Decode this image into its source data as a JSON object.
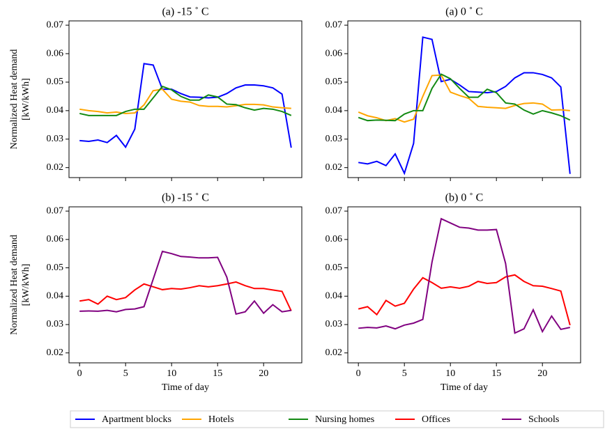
{
  "chart_data": [
    {
      "type": "line",
      "title": "(a)  -15 ˚ C",
      "ylabel": [
        "Normalized Heat demand",
        "[kW/kWh]"
      ],
      "x": [
        0,
        1,
        2,
        3,
        4,
        5,
        6,
        7,
        8,
        9,
        10,
        11,
        12,
        13,
        14,
        15,
        16,
        17,
        18,
        19,
        20,
        21,
        22,
        23
      ],
      "xlim": [
        -1.15,
        24.15
      ],
      "xticks": [
        0,
        5,
        10,
        15,
        20
      ],
      "ylim": [
        0.0165,
        0.0715
      ],
      "yticks": [
        0.02,
        0.03,
        0.04,
        0.05,
        0.06,
        0.07
      ],
      "series": [
        {
          "name": "Apartment blocks",
          "color": "#0000ff",
          "values": [
            0.0295,
            0.0292,
            0.0297,
            0.0288,
            0.0313,
            0.0272,
            0.0335,
            0.0565,
            0.056,
            0.0475,
            0.0475,
            0.046,
            0.0448,
            0.0447,
            0.0445,
            0.0447,
            0.046,
            0.048,
            0.049,
            0.049,
            0.0487,
            0.048,
            0.0458,
            0.027
          ]
        },
        {
          "name": "Hotels",
          "color": "#ffa500",
          "values": [
            0.0405,
            0.04,
            0.0397,
            0.0392,
            0.0395,
            0.039,
            0.0392,
            0.042,
            0.047,
            0.0475,
            0.044,
            0.0433,
            0.043,
            0.0418,
            0.0415,
            0.0415,
            0.0413,
            0.0417,
            0.0422,
            0.0422,
            0.042,
            0.0413,
            0.041,
            0.0408
          ]
        },
        {
          "name": "Nursing homes",
          "color": "#138a13",
          "values": [
            0.039,
            0.0383,
            0.0383,
            0.0383,
            0.0383,
            0.0397,
            0.0405,
            0.0405,
            0.0445,
            0.0485,
            0.0473,
            0.045,
            0.0437,
            0.0437,
            0.0455,
            0.0448,
            0.0423,
            0.0421,
            0.041,
            0.0402,
            0.0408,
            0.0405,
            0.0397,
            0.0383
          ]
        }
      ]
    },
    {
      "type": "line",
      "title": "(a)  0 ˚ C",
      "x": [
        0,
        1,
        2,
        3,
        4,
        5,
        6,
        7,
        8,
        9,
        10,
        11,
        12,
        13,
        14,
        15,
        16,
        17,
        18,
        19,
        20,
        21,
        22,
        23
      ],
      "xlim": [
        -1.15,
        24.15
      ],
      "xticks": [
        0,
        5,
        10,
        15,
        20
      ],
      "ylim": [
        0.0165,
        0.0715
      ],
      "yticks": [
        0.02,
        0.03,
        0.04,
        0.05,
        0.06,
        0.07
      ],
      "series": [
        {
          "name": "Apartment blocks",
          "color": "#0000ff",
          "values": [
            0.0218,
            0.0213,
            0.0222,
            0.0207,
            0.0248,
            0.018,
            0.0285,
            0.0658,
            0.065,
            0.0502,
            0.051,
            0.049,
            0.0467,
            0.0465,
            0.0463,
            0.0467,
            0.0485,
            0.0515,
            0.0533,
            0.0533,
            0.0527,
            0.0515,
            0.0483,
            0.0178
          ]
        },
        {
          "name": "Hotels",
          "color": "#ffa500",
          "values": [
            0.0395,
            0.0382,
            0.0375,
            0.0365,
            0.0372,
            0.036,
            0.037,
            0.045,
            0.0523,
            0.0525,
            0.0465,
            0.0453,
            0.0443,
            0.0415,
            0.0412,
            0.041,
            0.0408,
            0.0418,
            0.0425,
            0.0427,
            0.0423,
            0.0402,
            0.0403,
            0.04
          ]
        },
        {
          "name": "Nursing homes",
          "color": "#138a13",
          "values": [
            0.0376,
            0.0365,
            0.0367,
            0.0366,
            0.0365,
            0.0388,
            0.04,
            0.04,
            0.0478,
            0.0528,
            0.0512,
            0.0478,
            0.0447,
            0.0447,
            0.0475,
            0.0463,
            0.0427,
            0.0423,
            0.0402,
            0.0388,
            0.04,
            0.0392,
            0.0382,
            0.0367
          ]
        }
      ]
    },
    {
      "type": "line",
      "title": "(b)  -15 ˚ C",
      "ylabel": [
        "Normalized Heat demand",
        "[kW/kWh]"
      ],
      "xlabel": "Time of day",
      "x": [
        0,
        1,
        2,
        3,
        4,
        5,
        6,
        7,
        8,
        9,
        10,
        11,
        12,
        13,
        14,
        15,
        16,
        17,
        18,
        19,
        20,
        21,
        22,
        23
      ],
      "xlim": [
        -1.15,
        24.15
      ],
      "xticks": [
        0,
        5,
        10,
        15,
        20
      ],
      "ylim": [
        0.0165,
        0.0715
      ],
      "yticks": [
        0.02,
        0.03,
        0.04,
        0.05,
        0.06,
        0.07
      ],
      "series": [
        {
          "name": "Offices",
          "color": "#ff0000",
          "values": [
            0.0383,
            0.0388,
            0.0372,
            0.04,
            0.0388,
            0.0395,
            0.0422,
            0.0443,
            0.0433,
            0.0423,
            0.0427,
            0.0425,
            0.043,
            0.0437,
            0.0433,
            0.0437,
            0.0443,
            0.045,
            0.0437,
            0.0427,
            0.0427,
            0.0422,
            0.0417,
            0.0348
          ]
        },
        {
          "name": "Schools",
          "color": "#800080",
          "values": [
            0.0347,
            0.0348,
            0.0347,
            0.035,
            0.0345,
            0.0353,
            0.0355,
            0.0363,
            0.046,
            0.0558,
            0.055,
            0.054,
            0.0538,
            0.0535,
            0.0535,
            0.0537,
            0.0467,
            0.0337,
            0.0345,
            0.0383,
            0.034,
            0.037,
            0.0345,
            0.035
          ]
        }
      ]
    },
    {
      "type": "line",
      "title": "(b)  0 ˚ C",
      "xlabel": "Time of day",
      "x": [
        0,
        1,
        2,
        3,
        4,
        5,
        6,
        7,
        8,
        9,
        10,
        11,
        12,
        13,
        14,
        15,
        16,
        17,
        18,
        19,
        20,
        21,
        22,
        23
      ],
      "xlim": [
        -1.15,
        24.15
      ],
      "xticks": [
        0,
        5,
        10,
        15,
        20
      ],
      "ylim": [
        0.0165,
        0.0715
      ],
      "yticks": [
        0.02,
        0.03,
        0.04,
        0.05,
        0.06,
        0.07
      ],
      "series": [
        {
          "name": "Offices",
          "color": "#ff0000",
          "values": [
            0.0355,
            0.0363,
            0.0335,
            0.0385,
            0.0365,
            0.0375,
            0.0425,
            0.0465,
            0.0448,
            0.0428,
            0.0433,
            0.0428,
            0.0435,
            0.0452,
            0.0445,
            0.0448,
            0.0468,
            0.0475,
            0.0452,
            0.0437,
            0.0435,
            0.0427,
            0.0418,
            0.0298
          ]
        },
        {
          "name": "Schools",
          "color": "#800080",
          "values": [
            0.0287,
            0.029,
            0.0288,
            0.0295,
            0.0285,
            0.0298,
            0.0305,
            0.0318,
            0.052,
            0.0673,
            0.0658,
            0.0643,
            0.064,
            0.0633,
            0.0633,
            0.0635,
            0.0515,
            0.027,
            0.0285,
            0.0352,
            0.0275,
            0.033,
            0.0283,
            0.029
          ]
        }
      ]
    }
  ]
}
